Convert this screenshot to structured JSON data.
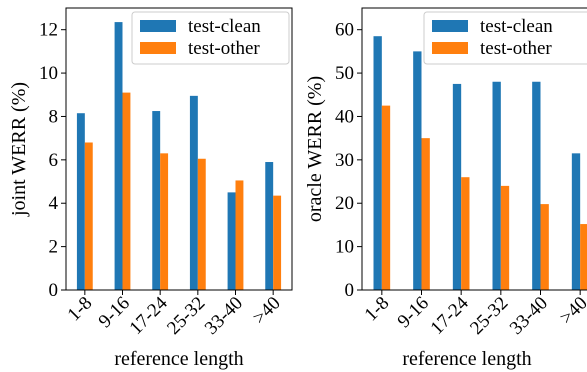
{
  "chart_data": [
    {
      "type": "bar",
      "categories": [
        "1-8",
        "9-16",
        "17-24",
        "25-32",
        "33-40",
        ">40"
      ],
      "series": [
        {
          "name": "test-clean",
          "color": "#1f77b4",
          "values": [
            8.15,
            12.35,
            8.25,
            8.95,
            4.5,
            5.9
          ]
        },
        {
          "name": "test-other",
          "color": "#ff7f0e",
          "values": [
            6.8,
            9.1,
            6.3,
            6.05,
            5.05,
            4.35
          ]
        }
      ],
      "xlabel": "reference length",
      "ylabel": "joint WERR (%)",
      "ylim": [
        0,
        13
      ],
      "yticks": [
        0,
        2,
        4,
        6,
        8,
        10,
        12
      ],
      "legend": "top-right",
      "grid": false
    },
    {
      "type": "bar",
      "categories": [
        "1-8",
        "9-16",
        "17-24",
        "25-32",
        "33-40",
        ">40"
      ],
      "series": [
        {
          "name": "test-clean",
          "color": "#1f77b4",
          "values": [
            58.5,
            55.0,
            47.5,
            48.0,
            48.0,
            31.5
          ]
        },
        {
          "name": "test-other",
          "color": "#ff7f0e",
          "values": [
            42.5,
            35.0,
            26.0,
            24.0,
            19.8,
            15.2
          ]
        }
      ],
      "xlabel": "reference length",
      "ylabel": "oracle WERR (%)",
      "ylim": [
        0,
        65
      ],
      "yticks": [
        0,
        10,
        20,
        30,
        40,
        50,
        60
      ],
      "legend": "top-right",
      "grid": false
    }
  ]
}
